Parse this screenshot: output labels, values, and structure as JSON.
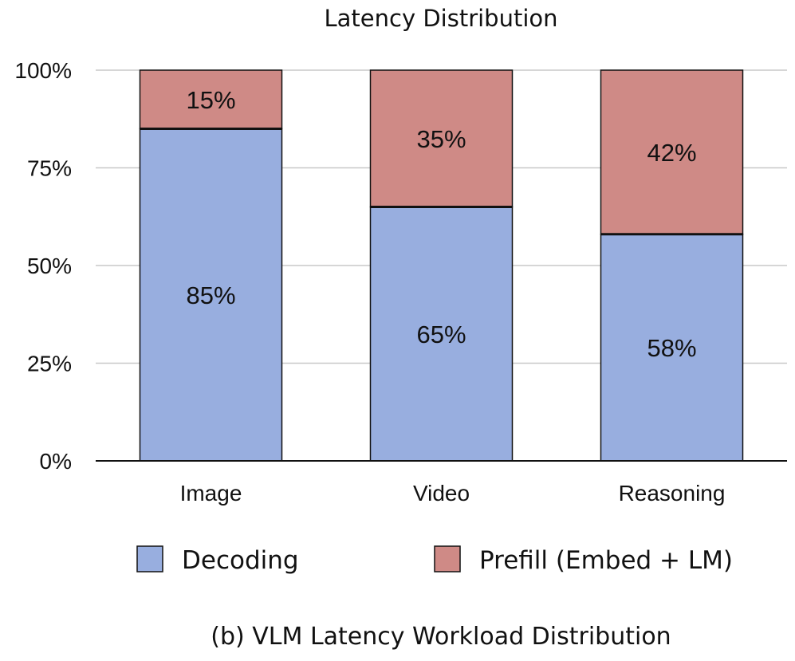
{
  "chart_data": {
    "type": "bar",
    "stacked": true,
    "title": "Latency Distribution",
    "caption": "(b) VLM Latency Workload Distribution",
    "categories": [
      "Image",
      "Video",
      "Reasoning"
    ],
    "series": [
      {
        "name": "Decoding",
        "values": [
          85,
          65,
          58
        ],
        "labels": [
          "85%",
          "65%",
          "58%"
        ],
        "color": "#98AEDF"
      },
      {
        "name": "Prefill (Embed + LM)",
        "values": [
          15,
          35,
          42
        ],
        "labels": [
          "15%",
          "35%",
          "42%"
        ],
        "color": "#CF8A86"
      }
    ],
    "ylim": [
      0,
      100
    ],
    "yticks": [
      0,
      25,
      50,
      75,
      100
    ],
    "ytick_labels": [
      "0%",
      "25%",
      "50%",
      "75%",
      "100%"
    ],
    "grid": true,
    "legend_position": "bottom"
  }
}
